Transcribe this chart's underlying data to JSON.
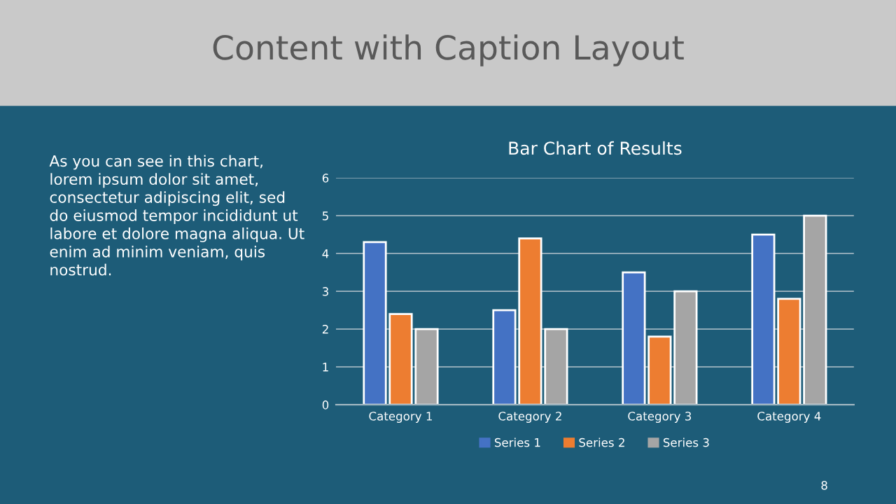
{
  "chart_data": {
    "type": "bar",
    "title": "Content with Caption Layout",
    "subtitle": "Bar Chart of Results",
    "categories": [
      "Category 1",
      "Category 2",
      "Category 3",
      "Category 4"
    ],
    "series": [
      {
        "name": "Series 1",
        "color": "#4472c4",
        "values": [
          4.3,
          2.5,
          3.5,
          4.5
        ]
      },
      {
        "name": "Series 2",
        "color": "#ed7d31",
        "values": [
          2.4,
          4.4,
          1.8,
          2.8
        ]
      },
      {
        "name": "Series 3",
        "color": "#a5a5a5",
        "values": [
          2,
          2,
          3,
          5
        ]
      }
    ],
    "ylim": [
      0,
      6
    ],
    "yticks": [
      0,
      1,
      2,
      3,
      4,
      5,
      6
    ],
    "grid": "y",
    "legend": "bottom",
    "annotations": [
      "As you can see in this chart,\nlorem ipsum dolor sit amet,\nconsectetur adipiscing elit, sed\ndo eiusmod tempor incididunt ut\nlabore et dolore magna aliqua. Ut\nenim ad minim veniam, quis\nnostrud.",
      "8"
    ]
  }
}
